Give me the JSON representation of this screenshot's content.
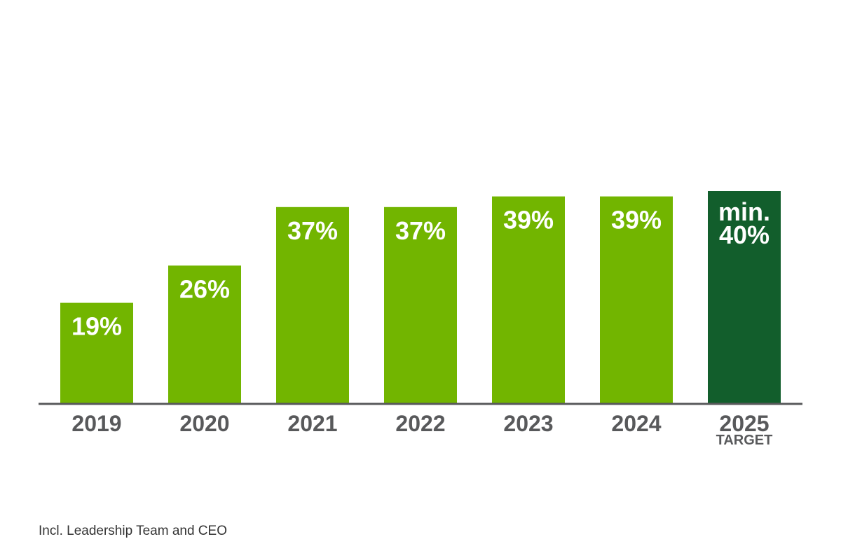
{
  "chart_data": {
    "type": "bar",
    "categories": [
      "2019",
      "2020",
      "2021",
      "2022",
      "2023",
      "2024",
      "2025"
    ],
    "category_sublabels": [
      "",
      "",
      "",
      "",
      "",
      "",
      "TARGET"
    ],
    "values": [
      19,
      26,
      37,
      37,
      39,
      39,
      40
    ],
    "data_labels": [
      [
        "19%"
      ],
      [
        "26%"
      ],
      [
        "37%"
      ],
      [
        "37%"
      ],
      [
        "39%"
      ],
      [
        "39%"
      ],
      [
        "min.",
        "40%"
      ]
    ],
    "ylim": [
      0,
      55
    ],
    "title": "",
    "xlabel": "",
    "ylabel": "",
    "grid": false,
    "legend": "none",
    "colors": {
      "actual": "#72b500",
      "target": "#125e2c",
      "axis": "#58595b",
      "label_text": "#ffffff",
      "category_text": "#58595b"
    }
  },
  "footnote": "Incl. Leadership Team and CEO"
}
